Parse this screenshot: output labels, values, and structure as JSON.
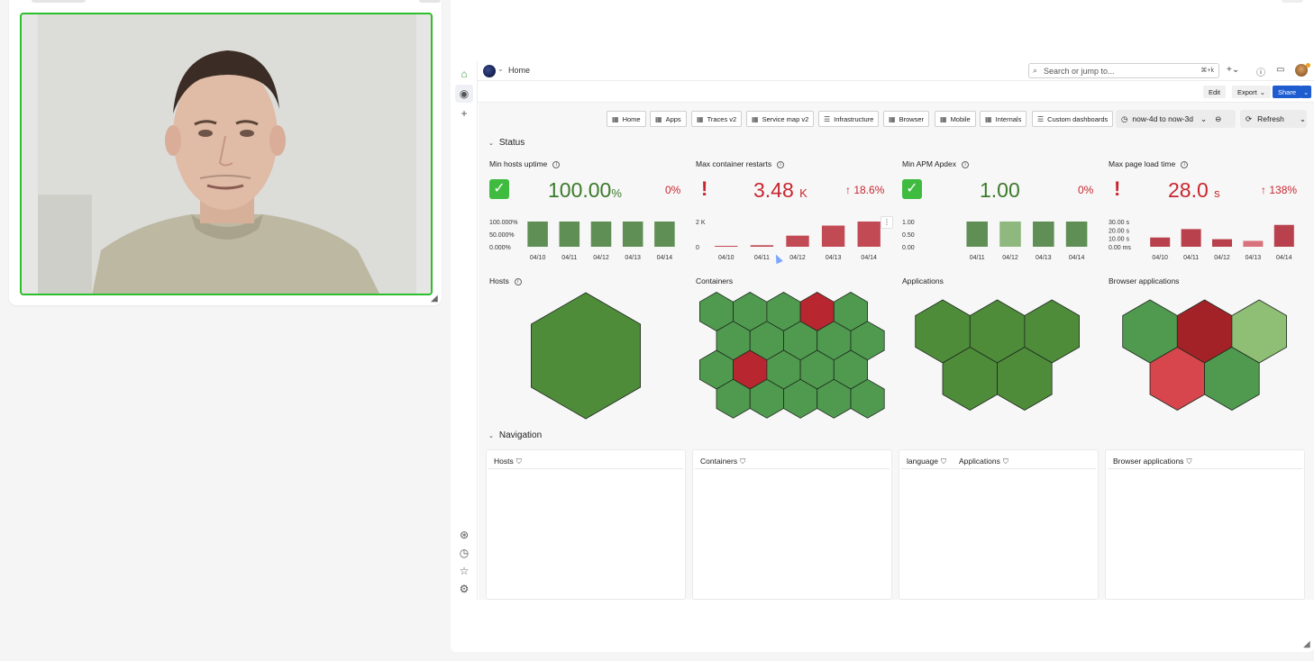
{
  "topbar": {
    "breadcrumb": "Home",
    "search_placeholder": "Search or jump to...",
    "search_shortcut": "⌘+k"
  },
  "actions": {
    "edit": "Edit",
    "export": "Export",
    "share": "Share"
  },
  "nav_buttons": [
    "Home",
    "Apps",
    "Traces v2",
    "Service map v2",
    "Infrastructure",
    "Browser",
    "Mobile",
    "Internals",
    "Custom dashboards"
  ],
  "time_range": "now-4d to now-3d",
  "refresh_label": "Refresh",
  "sections": {
    "status": "Status",
    "navigation": "Navigation"
  },
  "stats": [
    {
      "title": "Min hosts uptime",
      "value": "100.00",
      "unit": "%",
      "delta": "0%",
      "status": "ok",
      "yticks": [
        "100.000%",
        "50.000%",
        "0.000%"
      ],
      "bar_values": [
        100,
        100,
        100,
        100,
        100
      ],
      "bar_colors": [
        "#5f8f55",
        "#5f8f55",
        "#5f8f55",
        "#5f8f55",
        "#5f8f55"
      ]
    },
    {
      "title": "Max container restarts",
      "value": "3.48",
      "unit": "K",
      "delta": "18.6%",
      "status": "alert",
      "yticks": [
        "2 K",
        "0"
      ],
      "bar_values": [
        30,
        150,
        1100,
        2100,
        2500
      ],
      "bar_colors": [
        "#c14a55",
        "#c14a55",
        "#c14a55",
        "#c14a55",
        "#c14a55"
      ]
    },
    {
      "title": "Min APM Apdex",
      "value": "1.00",
      "unit": "",
      "delta": "0%",
      "status": "ok",
      "yticks": [
        "1.00",
        "0.50",
        "0.00"
      ],
      "bar_values": [
        1,
        1,
        1,
        1
      ],
      "bar_colors": [
        "#5f8f55",
        "#8fb87f",
        "#5f8f55",
        "#5f8f55"
      ]
    },
    {
      "title": "Max page load time",
      "value": "28.0",
      "unit": "s",
      "delta": "138%",
      "status": "alert",
      "yticks": [
        "30.00 s",
        "20.00 s",
        "10.00 s",
        "0.00 ms"
      ],
      "bar_values": [
        11,
        21,
        9,
        7,
        26
      ],
      "bar_colors": [
        "#b9414d",
        "#b9414d",
        "#b9414d",
        "#d9737b",
        "#b9414d"
      ]
    }
  ],
  "dates": [
    "04/10",
    "04/11",
    "04/12",
    "04/13",
    "04/14"
  ],
  "apdex_dates": [
    "04/11",
    "04/12",
    "04/13",
    "04/14"
  ],
  "honeycombs": {
    "hosts": {
      "title": "Hosts",
      "colors": [
        "#4e8c3a"
      ]
    },
    "containers": {
      "title": "Containers",
      "colors": [
        "#4f9a4f",
        "#4f9a4f",
        "#4f9a4f",
        "#b8262f",
        "#4f9a4f",
        "#4f9a4f",
        "#4f9a4f",
        "#4f9a4f",
        "#4f9a4f",
        "#4f9a4f",
        "#4f9a4f",
        "#b8262f",
        "#4f9a4f",
        "#4f9a4f",
        "#4f9a4f",
        "#4f9a4f",
        "#4f9a4f",
        "#4f9a4f",
        "#4f9a4f",
        "#4f9a4f"
      ]
    },
    "applications": {
      "title": "Applications",
      "colors": [
        "#4e8c3a",
        "#4e8c3a",
        "#4e8c3a",
        "#4e8c3a",
        "#4e8c3a"
      ]
    },
    "browser": {
      "title": "Browser applications",
      "colors": [
        "#4f9a4f",
        "#a32228",
        "#8fbf74",
        "#d6464c",
        "#4f9a4f"
      ]
    }
  },
  "tables": [
    {
      "headers": [
        "Hosts"
      ]
    },
    {
      "headers": [
        "Containers"
      ]
    },
    {
      "headers": [
        "language",
        "Applications"
      ]
    },
    {
      "headers": [
        "Browser applications"
      ]
    }
  ]
}
